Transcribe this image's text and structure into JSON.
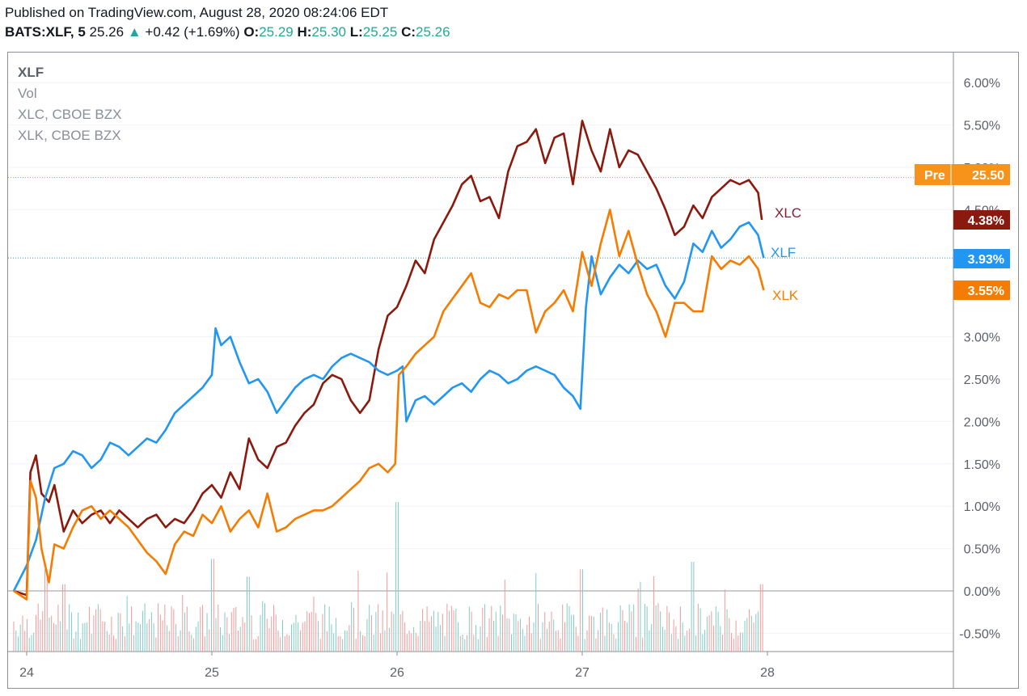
{
  "header": {
    "published": "Published on TradingView.com, August 28, 2020 08:24:06 EDT",
    "symbol": "BATS:XLF, 5",
    "last": "25.26",
    "change": "+0.42 (+1.69%)",
    "o_label": "O:",
    "o_value": "25.29",
    "h_label": "H:",
    "h_value": "25.30",
    "l_label": "L:",
    "l_value": "25.25",
    "c_label": "C:",
    "c_value": "25.26",
    "up_arrow_icon": "triangle-up-icon"
  },
  "legend": {
    "main": "XLF",
    "vol": "Vol",
    "xlc": "XLC, CBOE BZX",
    "xlk": "XLK, CBOE BZX"
  },
  "chart_data": {
    "type": "line",
    "y_ticks": [
      "6.00%",
      "5.50%",
      "5.00%",
      "4.50%",
      "3.00%",
      "2.50%",
      "2.00%",
      "1.50%",
      "1.00%",
      "0.50%",
      "0.00%",
      "-0.50%"
    ],
    "x_ticks": [
      "24",
      "25",
      "26",
      "27",
      "28"
    ],
    "ylim": [
      -0.72,
      6.55
    ],
    "xlim": [
      23.93,
      29.0
    ],
    "colors": {
      "xlf": "#2196f3",
      "xlc": "#8b1a0e",
      "xlk": "#f57c00",
      "pre": "#f7931a",
      "vol_up": "#80cbc4",
      "vol_down": "#ef9a9a"
    },
    "series": [
      {
        "name": "XLC",
        "end_label": "4.38%",
        "x": [
          23.93,
          24.0,
          24.02,
          24.05,
          24.08,
          24.12,
          24.15,
          24.2,
          24.25,
          24.3,
          24.35,
          24.4,
          24.45,
          24.5,
          24.55,
          24.6,
          24.65,
          24.7,
          24.75,
          24.8,
          24.85,
          24.9,
          24.95,
          25.0,
          25.05,
          25.1,
          25.15,
          25.2,
          25.25,
          25.3,
          25.35,
          25.4,
          25.45,
          25.5,
          25.55,
          25.6,
          25.65,
          25.7,
          25.75,
          25.8,
          25.85,
          25.9,
          25.95,
          26.0,
          26.05,
          26.1,
          26.15,
          26.2,
          26.25,
          26.3,
          26.35,
          26.4,
          26.45,
          26.5,
          26.55,
          26.6,
          26.65,
          26.7,
          26.75,
          26.8,
          26.85,
          26.9,
          26.95,
          27.0,
          27.05,
          27.1,
          27.15,
          27.2,
          27.25,
          27.3,
          27.35,
          27.4,
          27.45,
          27.5,
          27.55,
          27.6,
          27.65,
          27.7,
          27.75,
          27.8,
          27.85,
          27.9,
          27.95,
          27.97
        ],
        "y": [
          0.0,
          -0.05,
          1.4,
          1.6,
          1.15,
          1.05,
          1.25,
          0.7,
          0.95,
          0.8,
          0.9,
          0.95,
          0.8,
          0.95,
          0.85,
          0.75,
          0.85,
          0.9,
          0.75,
          0.85,
          0.8,
          0.95,
          1.15,
          1.25,
          1.1,
          1.4,
          1.2,
          1.8,
          1.55,
          1.45,
          1.7,
          1.75,
          1.95,
          2.1,
          2.2,
          2.45,
          2.55,
          2.5,
          2.25,
          2.1,
          2.25,
          2.85,
          3.25,
          3.35,
          3.6,
          3.9,
          3.75,
          4.15,
          4.35,
          4.55,
          4.8,
          4.9,
          4.6,
          4.65,
          4.4,
          4.95,
          5.25,
          5.3,
          5.45,
          5.05,
          5.35,
          5.4,
          4.8,
          5.55,
          5.2,
          4.95,
          5.45,
          5.0,
          5.2,
          5.15,
          4.95,
          4.75,
          4.5,
          4.2,
          4.3,
          4.55,
          4.4,
          4.65,
          4.75,
          4.85,
          4.8,
          4.85,
          4.7,
          4.38
        ]
      },
      {
        "name": "XLF",
        "end_label": "3.93%",
        "x": [
          23.93,
          24.0,
          24.05,
          24.1,
          24.15,
          24.2,
          24.25,
          24.3,
          24.35,
          24.4,
          24.45,
          24.5,
          24.55,
          24.6,
          24.65,
          24.7,
          24.75,
          24.8,
          24.85,
          24.9,
          24.95,
          25.0,
          25.02,
          25.05,
          25.1,
          25.15,
          25.2,
          25.25,
          25.3,
          25.35,
          25.4,
          25.45,
          25.5,
          25.55,
          25.6,
          25.65,
          25.7,
          25.75,
          25.8,
          25.85,
          25.9,
          25.95,
          26.0,
          26.03,
          26.05,
          26.1,
          26.15,
          26.2,
          26.25,
          26.3,
          26.35,
          26.4,
          26.45,
          26.5,
          26.55,
          26.6,
          26.65,
          26.7,
          26.75,
          26.8,
          26.85,
          26.9,
          26.95,
          26.99,
          27.02,
          27.05,
          27.1,
          27.15,
          27.2,
          27.25,
          27.3,
          27.35,
          27.4,
          27.45,
          27.5,
          27.55,
          27.6,
          27.65,
          27.7,
          27.75,
          27.8,
          27.85,
          27.9,
          27.95,
          27.98
        ],
        "y": [
          0.0,
          0.3,
          0.6,
          1.1,
          1.45,
          1.5,
          1.65,
          1.6,
          1.45,
          1.55,
          1.75,
          1.7,
          1.6,
          1.7,
          1.8,
          1.75,
          1.9,
          2.1,
          2.2,
          2.3,
          2.4,
          2.55,
          3.1,
          2.9,
          3.0,
          2.7,
          2.45,
          2.5,
          2.35,
          2.1,
          2.25,
          2.4,
          2.5,
          2.55,
          2.5,
          2.65,
          2.75,
          2.8,
          2.75,
          2.7,
          2.6,
          2.55,
          2.6,
          2.65,
          2.0,
          2.25,
          2.3,
          2.2,
          2.3,
          2.4,
          2.45,
          2.35,
          2.5,
          2.6,
          2.55,
          2.45,
          2.5,
          2.6,
          2.65,
          2.6,
          2.55,
          2.4,
          2.3,
          2.15,
          3.35,
          3.95,
          3.5,
          3.7,
          3.85,
          3.75,
          3.9,
          3.8,
          3.85,
          3.6,
          3.45,
          3.65,
          4.1,
          4.0,
          4.25,
          4.05,
          4.15,
          4.3,
          4.35,
          4.2,
          3.93
        ]
      },
      {
        "name": "XLK",
        "end_label": "3.55%",
        "x": [
          23.93,
          24.0,
          24.02,
          24.05,
          24.08,
          24.12,
          24.15,
          24.2,
          24.25,
          24.3,
          24.35,
          24.4,
          24.45,
          24.5,
          24.55,
          24.6,
          24.65,
          24.7,
          24.75,
          24.8,
          24.85,
          24.9,
          24.95,
          25.0,
          25.05,
          25.1,
          25.15,
          25.2,
          25.25,
          25.3,
          25.35,
          25.4,
          25.45,
          25.5,
          25.55,
          25.6,
          25.65,
          25.7,
          25.75,
          25.8,
          25.85,
          25.9,
          25.95,
          25.99,
          26.01,
          26.05,
          26.1,
          26.15,
          26.2,
          26.25,
          26.3,
          26.35,
          26.4,
          26.45,
          26.5,
          26.55,
          26.6,
          26.65,
          26.7,
          26.75,
          26.8,
          26.85,
          26.9,
          26.95,
          27.0,
          27.05,
          27.1,
          27.15,
          27.2,
          27.25,
          27.3,
          27.35,
          27.4,
          27.45,
          27.5,
          27.55,
          27.6,
          27.65,
          27.7,
          27.75,
          27.8,
          27.85,
          27.9,
          27.95,
          27.98
        ],
        "y": [
          0.0,
          -0.1,
          1.3,
          1.1,
          0.5,
          0.1,
          0.55,
          0.5,
          0.75,
          0.95,
          1.0,
          0.85,
          0.95,
          0.85,
          0.75,
          0.6,
          0.45,
          0.35,
          0.2,
          0.55,
          0.7,
          0.65,
          0.9,
          0.8,
          1.0,
          0.7,
          0.85,
          0.95,
          0.75,
          1.15,
          0.7,
          0.75,
          0.85,
          0.9,
          0.95,
          0.95,
          1.0,
          1.1,
          1.2,
          1.3,
          1.45,
          1.5,
          1.4,
          1.5,
          2.55,
          2.65,
          2.8,
          2.9,
          3.0,
          3.3,
          3.45,
          3.6,
          3.75,
          3.4,
          3.35,
          3.5,
          3.45,
          3.55,
          3.55,
          3.05,
          3.3,
          3.4,
          3.55,
          3.3,
          4.0,
          3.6,
          4.1,
          4.5,
          3.95,
          4.25,
          3.85,
          3.5,
          3.3,
          3.0,
          3.4,
          3.4,
          3.3,
          3.3,
          3.95,
          3.8,
          3.9,
          3.85,
          3.95,
          3.8,
          3.55
        ]
      }
    ],
    "xlf_last_line": 3.93,
    "pre_market": {
      "label": "Pre",
      "value": "25.50",
      "level": 4.88
    },
    "volume_max": 1.0,
    "volume_note": "Vol"
  }
}
